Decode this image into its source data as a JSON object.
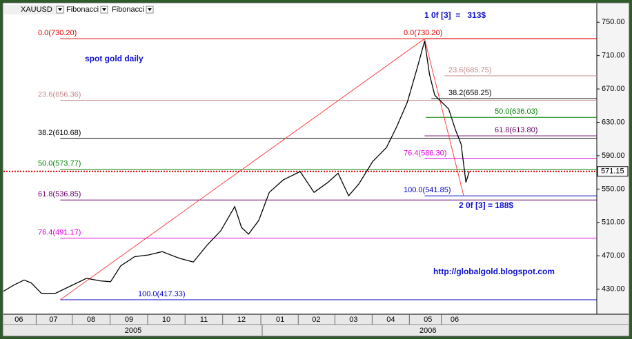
{
  "chart_data": {
    "type": "line",
    "toolbar": [
      "XAUUSD",
      "Fibonacci",
      "Fibonacci"
    ],
    "annotations": [
      "spot gold daily",
      "1 0f [3]  =   313$",
      "2 0f [3] = 188$",
      "http://globalgold.blogspot.com"
    ],
    "color": "#000000",
    "x": [
      -0.83,
      -0.55,
      -0.28,
      -0.09,
      0.18,
      0.55,
      0.92,
      1.38,
      1.74,
      2.02,
      2.29,
      2.66,
      3.03,
      3.39,
      3.85,
      4.22,
      4.59,
      4.95,
      5.32,
      5.5,
      5.69,
      5.96,
      6.24,
      6.61,
      7.06,
      7.43,
      7.8,
      8.07,
      8.35,
      8.62,
      8.99,
      9.36,
      9.63,
      9.91,
      10.18,
      10.37,
      10.5,
      10.64,
      10.83,
      11.01,
      11.19,
      11.34,
      11.47,
      11.56
    ],
    "values": [
      427.5,
      435,
      441,
      437.5,
      425,
      425,
      433,
      443,
      440,
      439,
      458,
      469,
      471,
      475,
      467,
      462.5,
      483,
      500,
      529,
      504,
      496,
      512.5,
      546,
      561,
      571,
      546,
      558,
      569,
      542,
      556,
      583,
      600,
      625,
      654,
      696,
      727.5,
      687.5,
      662.5,
      654,
      646,
      621,
      604,
      558,
      571.15
    ],
    "xlim": [
      -0.83,
      14.95
    ],
    "ylim": [
      400,
      772.5
    ],
    "yticks": [
      {
        "value": 430,
        "label": "430.00"
      },
      {
        "value": 470,
        "label": "470.00"
      },
      {
        "value": 510,
        "label": "510.00"
      },
      {
        "value": 550,
        "label": "550.00"
      },
      {
        "value": 590,
        "label": "590.00"
      },
      {
        "value": 630,
        "label": "630.00"
      },
      {
        "value": 670,
        "label": "670.00"
      },
      {
        "value": 710,
        "label": "710.00"
      },
      {
        "value": 750,
        "label": "750.00"
      }
    ],
    "xticks": [
      {
        "value": -0.42,
        "label": "06"
      },
      {
        "value": 0.5,
        "label": "07"
      },
      {
        "value": 1.5,
        "label": "08"
      },
      {
        "value": 2.51,
        "label": "09"
      },
      {
        "value": 3.5,
        "label": "10"
      },
      {
        "value": 4.5,
        "label": "11"
      },
      {
        "value": 5.5,
        "label": "12"
      },
      {
        "value": 6.53,
        "label": "01"
      },
      {
        "value": 7.49,
        "label": "02"
      },
      {
        "value": 8.48,
        "label": "03"
      },
      {
        "value": 9.47,
        "label": "04"
      },
      {
        "value": 10.46,
        "label": "05"
      },
      {
        "value": 11.17,
        "label": "06"
      }
    ],
    "year_ticks": [
      {
        "value": 2.62,
        "label": "2005"
      },
      {
        "value": 10.46,
        "label": "2006"
      }
    ],
    "fib_levels": [
      {
        "label": "0.0(730.20)",
        "value": 730.2,
        "x": 0.68,
        "color": "#e00000"
      },
      {
        "label": "23.6(656.36)",
        "value": 656.36,
        "x": 0.68,
        "color": "#c08888"
      },
      {
        "label": "38.2(610.68)",
        "value": 610.68,
        "x": 0.68,
        "color": "#000000"
      },
      {
        "label": "50.0(573.77)",
        "value": 573.77,
        "x": 0.68,
        "color": "#008000"
      },
      {
        "label": "61.8(536.85)",
        "value": 536.85,
        "x": 0.68,
        "color": "#660066"
      },
      {
        "label": "76.4(491.17)",
        "value": 491.17,
        "x": 0.68,
        "color": "#e000e0"
      },
      {
        "label": "100.0(417.33)",
        "value": 417.33,
        "x": 0.68,
        "color": "#0000c0"
      },
      {
        "label": "0.0(730.20)",
        "value": 730.2,
        "x": 10.37,
        "color": "#e00000"
      },
      {
        "label": "23.6(685.75)",
        "value": 685.75,
        "x": 10.9,
        "color": "#c08888"
      },
      {
        "label": "38.2(658.25)",
        "value": 658.25,
        "x": 10.55,
        "color": "#000000"
      },
      {
        "label": "50.0(636.03)",
        "value": 636.03,
        "x": 10.4,
        "color": "#008000"
      },
      {
        "label": "61.8(613.80)",
        "value": 613.8,
        "x": 10.37,
        "color": "#660066"
      },
      {
        "label": "76.4(586.30)",
        "value": 586.3,
        "x": 10.37,
        "color": "#e000e0"
      },
      {
        "label": "100.0(541.85)",
        "value": 541.85,
        "x": 10.37,
        "color": "#0000c0"
      }
    ],
    "fib_swings": [
      {
        "x": 0.68,
        "value": 417.33
      },
      {
        "x": 10.37,
        "value": 730.2
      },
      {
        "x": 11.41,
        "value": 541.85
      }
    ],
    "last_price": 571.15
  }
}
